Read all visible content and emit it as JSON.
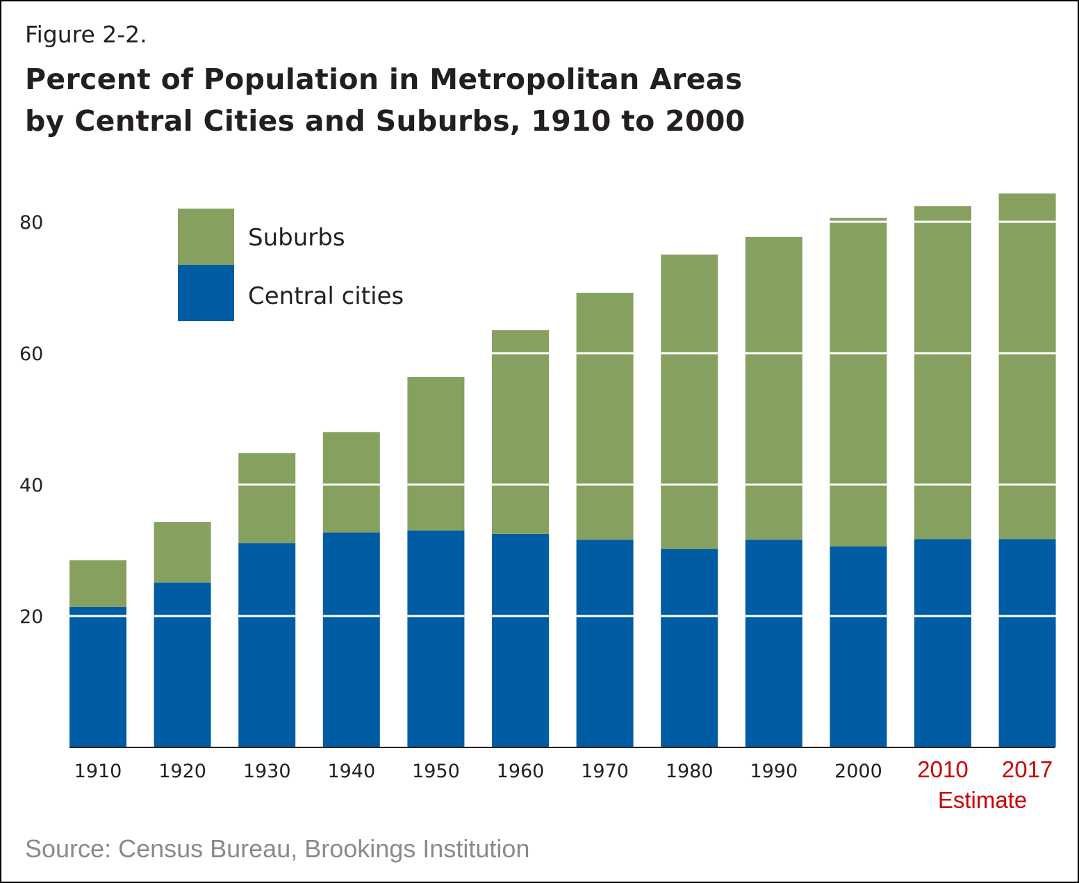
{
  "figure_label": "Figure 2-2.",
  "title_line1": "Percent of Population in Metropolitan Areas",
  "title_line2": "by Central Cities and Suburbs, 1910 to 2000",
  "source": "Source: Census Bureau, Brookings Institution",
  "chart_data": {
    "type": "bar",
    "stacked": true,
    "title": "Percent of Population in Metropolitan Areas by Central Cities and Suburbs, 1910 to 2000",
    "xlabel": "",
    "ylabel": "",
    "ylim": [
      0,
      85
    ],
    "yticks": [
      20,
      40,
      60,
      80
    ],
    "grid": "white lines through bars",
    "legend": {
      "placement": "top-left",
      "entries": [
        "Suburbs",
        "Central cities"
      ]
    },
    "categories": [
      "1910",
      "1920",
      "1930",
      "1940",
      "1950",
      "1960",
      "1970",
      "1980",
      "1990",
      "2000",
      "2010",
      "2017"
    ],
    "highlighted_categories": [
      "2010",
      "2017"
    ],
    "annotation": "Estimate",
    "series": [
      {
        "name": "Central cities",
        "color": "#005ca3",
        "values": [
          21.4,
          25.1,
          31.1,
          32.7,
          33.0,
          32.5,
          31.6,
          30.2,
          31.6,
          30.6,
          31.7,
          31.7
        ]
      },
      {
        "name": "Suburbs",
        "color": "#86a060",
        "values": [
          7.1,
          9.2,
          13.7,
          15.3,
          23.4,
          31.0,
          37.6,
          44.8,
          46.1,
          50.0,
          50.7,
          52.6
        ]
      }
    ],
    "totals": [
      28.5,
      34.3,
      44.8,
      48.0,
      56.4,
      63.5,
      69.2,
      75.0,
      77.7,
      80.6,
      82.4,
      84.3
    ]
  },
  "colors": {
    "suburbs": "#86a060",
    "central": "#005ca3",
    "estimate_text": "#cc0000",
    "source_text": "#8a8a8a"
  }
}
